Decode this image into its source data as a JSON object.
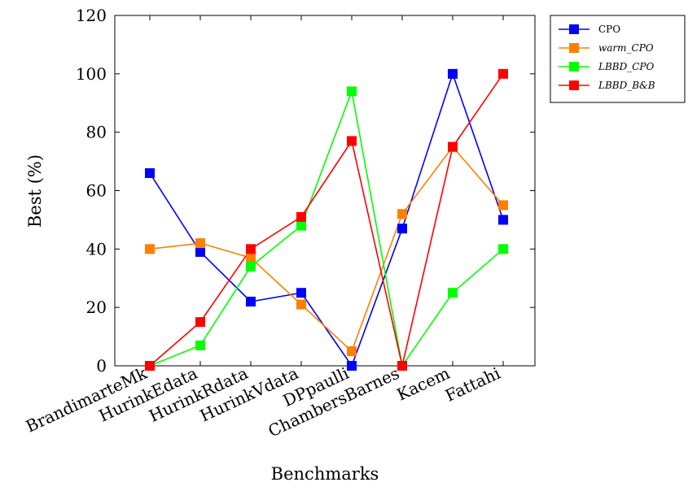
{
  "chart_data": {
    "type": "line",
    "xlabel": "Benchmarks",
    "ylabel": "Best (%)",
    "ylim": [
      0,
      120
    ],
    "yticks": [
      "0",
      "20",
      "40",
      "60",
      "80",
      "100",
      "120"
    ],
    "categories": [
      "BrandimarteMk",
      "HurinkEdata",
      "HurinkRdata",
      "HurinkVdata",
      "DPpaulli",
      "ChambersBarnes",
      "Kacem",
      "Fattahi"
    ],
    "legend_position": "outside-top-right",
    "grid": false,
    "series": [
      {
        "name": "CPO",
        "color": "#0000ff",
        "values": [
          66,
          39,
          22,
          25,
          0,
          47,
          100,
          50
        ]
      },
      {
        "name": "warm_CPO",
        "color": "#ff8000",
        "values": [
          40,
          42,
          37,
          21,
          5,
          52,
          75,
          55
        ]
      },
      {
        "name": "LBBD_CPO",
        "color": "#00ff00",
        "values": [
          0,
          7,
          34,
          48,
          94,
          0,
          25,
          40
        ]
      },
      {
        "name": "LBBD_B&B",
        "color": "#ff0000",
        "values": [
          0,
          15,
          40,
          51,
          77,
          0,
          75,
          100
        ]
      }
    ]
  }
}
